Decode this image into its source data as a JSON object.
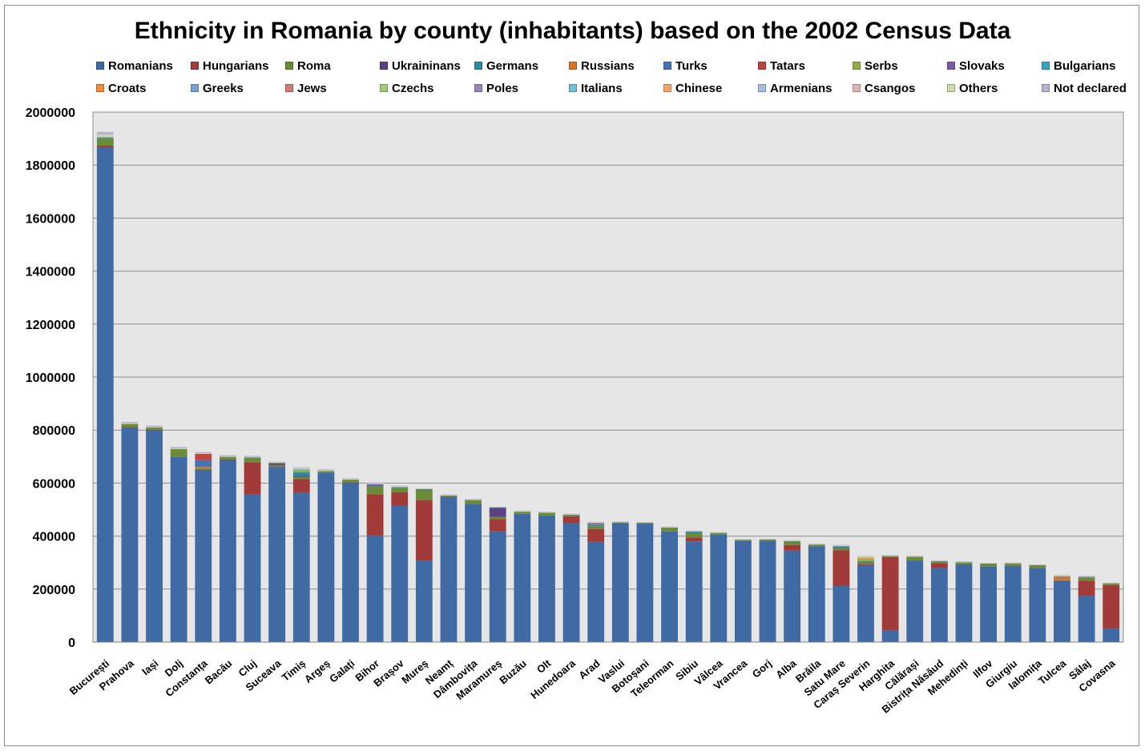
{
  "chart_data": {
    "type": "bar",
    "stacked": true,
    "title": "Ethnicity in Romania by county (inhabitants) based on the 2002 Census Data",
    "xlabel": "",
    "ylabel": "",
    "ylim": [
      0,
      2000000
    ],
    "yticks": [
      "0",
      "200000",
      "400000",
      "600000",
      "800000",
      "1000000",
      "1200000",
      "1400000",
      "1600000",
      "1800000",
      "2000000"
    ],
    "grid": true,
    "legend_position": "top",
    "categories": [
      "București",
      "Prahova",
      "Iași",
      "Dolj",
      "Constanța",
      "Bacău",
      "Cluj",
      "Suceava",
      "Timiș",
      "Argeș",
      "Galați",
      "Bihor",
      "Brașov",
      "Mureș",
      "Neamț",
      "Dâmbovița",
      "Maramureș",
      "Buzău",
      "Olt",
      "Hunedoara",
      "Arad",
      "Vaslui",
      "Botoșani",
      "Teleorman",
      "Sibiu",
      "Vâlcea",
      "Vrancea",
      "Gorj",
      "Alba",
      "Brăila",
      "Satu Mare",
      "Caraș Severin",
      "Harghita",
      "Călărași",
      "Bistrița Năsăud",
      "Mehedinți",
      "Ilfov",
      "Giurgiu",
      "Ialomița",
      "Tulcea",
      "Sălaj",
      "Covasna"
    ],
    "series": [
      {
        "name": "Romanians",
        "color": "#3f6aa4",
        "values": [
          1867000,
          810000,
          800000,
          700000,
          650000,
          688000,
          557000,
          661000,
          564000,
          640000,
          602000,
          402000,
          515000,
          308000,
          548000,
          522000,
          418000,
          484000,
          478000,
          449000,
          378000,
          449000,
          447000,
          418000,
          380000,
          406000,
          382000,
          382000,
          345000,
          362000,
          213000,
          290000,
          45000,
          308000,
          280000,
          293000,
          286000,
          287000,
          280000,
          230000,
          175000,
          51000
        ]
      },
      {
        "name": "Hungarians",
        "color": "#a33a3a",
        "values": [
          6000,
          1000,
          1000,
          0,
          500,
          1000,
          122000,
          2000,
          51000,
          0,
          1000,
          156000,
          50000,
          228000,
          1000,
          0,
          46000,
          0,
          0,
          26000,
          49000,
          0,
          0,
          0,
          15000,
          0,
          0,
          0,
          21000,
          0,
          134000,
          4000,
          276000,
          0,
          18000,
          0,
          0,
          0,
          0,
          0,
          57000,
          164000
        ]
      },
      {
        "name": "Roma",
        "color": "#6a8b38",
        "values": [
          28000,
          12000,
          9000,
          28000,
          6000,
          10000,
          17000,
          5000,
          8000,
          5000,
          10000,
          30000,
          17000,
          40000,
          4000,
          14000,
          8000,
          8000,
          10000,
          5000,
          10000,
          3000,
          3000,
          14000,
          16000,
          6000,
          4000,
          5000,
          14000,
          6000,
          8000,
          6000,
          4000,
          14000,
          6000,
          8000,
          10000,
          10000,
          10000,
          2000,
          12000,
          7000
        ]
      },
      {
        "name": "Ukraininans",
        "color": "#5c4282",
        "values": [
          0,
          0,
          0,
          0,
          0,
          0,
          0,
          6000,
          4000,
          0,
          0,
          0,
          0,
          0,
          0,
          0,
          34000,
          0,
          0,
          0,
          0,
          0,
          0,
          0,
          0,
          0,
          0,
          0,
          0,
          0,
          1000,
          2000,
          0,
          0,
          0,
          0,
          0,
          0,
          0,
          1000,
          0,
          0
        ]
      },
      {
        "name": "Germans",
        "color": "#2e8aa3",
        "values": [
          2000,
          0,
          0,
          0,
          0,
          0,
          1000,
          1000,
          14000,
          0,
          0,
          1000,
          3000,
          1000,
          0,
          0,
          2000,
          0,
          0,
          1000,
          5000,
          0,
          0,
          0,
          6000,
          0,
          0,
          0,
          1000,
          0,
          6000,
          3000,
          0,
          0,
          1000,
          0,
          0,
          0,
          0,
          0,
          0,
          0
        ]
      },
      {
        "name": "Russians",
        "color": "#d4772d",
        "values": [
          0,
          0,
          0,
          0,
          5000,
          0,
          0,
          2000,
          0,
          0,
          0,
          0,
          0,
          0,
          0,
          0,
          0,
          0,
          0,
          0,
          0,
          0,
          0,
          0,
          0,
          0,
          0,
          0,
          0,
          0,
          0,
          0,
          0,
          0,
          0,
          0,
          0,
          0,
          0,
          13000,
          0,
          0
        ]
      },
      {
        "name": "Turks",
        "color": "#4672b8",
        "values": [
          2000,
          0,
          0,
          0,
          25000,
          0,
          0,
          0,
          0,
          0,
          0,
          0,
          0,
          0,
          0,
          0,
          0,
          0,
          0,
          0,
          0,
          0,
          0,
          0,
          0,
          0,
          0,
          0,
          0,
          0,
          0,
          0,
          0,
          0,
          0,
          0,
          0,
          0,
          0,
          2000,
          0,
          0
        ]
      },
      {
        "name": "Tatars",
        "color": "#c0443e",
        "values": [
          0,
          0,
          0,
          0,
          24000,
          0,
          0,
          0,
          0,
          0,
          0,
          0,
          0,
          0,
          0,
          0,
          0,
          0,
          0,
          0,
          0,
          0,
          0,
          0,
          0,
          0,
          0,
          0,
          0,
          0,
          0,
          0,
          0,
          0,
          0,
          0,
          0,
          0,
          0,
          0,
          0,
          0
        ]
      },
      {
        "name": "Serbs",
        "color": "#8db046",
        "values": [
          0,
          0,
          0,
          0,
          0,
          0,
          0,
          0,
          8000,
          0,
          0,
          0,
          0,
          0,
          0,
          0,
          0,
          0,
          0,
          0,
          1000,
          0,
          0,
          0,
          0,
          0,
          0,
          0,
          0,
          0,
          0,
          6000,
          0,
          0,
          0,
          0,
          0,
          0,
          0,
          0,
          0,
          0
        ]
      },
      {
        "name": "Slovaks",
        "color": "#7b5ca6",
        "values": [
          0,
          0,
          0,
          0,
          0,
          0,
          0,
          0,
          0,
          0,
          0,
          7000,
          0,
          0,
          0,
          0,
          0,
          0,
          0,
          0,
          6000,
          0,
          0,
          0,
          0,
          0,
          0,
          0,
          0,
          0,
          0,
          0,
          0,
          0,
          0,
          0,
          0,
          0,
          0,
          0,
          2000,
          0
        ]
      },
      {
        "name": "Bulgarians",
        "color": "#35a6c0",
        "values": [
          0,
          0,
          0,
          0,
          0,
          0,
          0,
          0,
          2000,
          0,
          0,
          0,
          0,
          0,
          0,
          0,
          0,
          0,
          0,
          0,
          0,
          0,
          0,
          0,
          0,
          0,
          0,
          0,
          0,
          0,
          0,
          0,
          0,
          0,
          0,
          0,
          0,
          0,
          0,
          0,
          0,
          0
        ]
      },
      {
        "name": "Croats",
        "color": "#f08c36",
        "values": [
          0,
          0,
          0,
          0,
          0,
          0,
          0,
          0,
          0,
          0,
          0,
          0,
          0,
          0,
          0,
          0,
          0,
          0,
          0,
          0,
          0,
          0,
          0,
          0,
          0,
          0,
          0,
          0,
          0,
          0,
          0,
          6000,
          0,
          0,
          0,
          0,
          0,
          0,
          0,
          0,
          0,
          0
        ]
      },
      {
        "name": "Greeks",
        "color": "#7d9ed0",
        "values": [
          0,
          0,
          0,
          0,
          0,
          0,
          0,
          0,
          0,
          0,
          0,
          0,
          0,
          0,
          0,
          0,
          0,
          0,
          0,
          0,
          0,
          0,
          0,
          0,
          0,
          0,
          0,
          0,
          0,
          0,
          0,
          0,
          0,
          0,
          0,
          0,
          0,
          0,
          0,
          0,
          0,
          0
        ]
      },
      {
        "name": "Jews",
        "color": "#d07a78",
        "values": [
          0,
          0,
          0,
          0,
          0,
          0,
          0,
          0,
          0,
          0,
          0,
          0,
          0,
          0,
          0,
          0,
          0,
          0,
          0,
          0,
          0,
          0,
          0,
          0,
          0,
          0,
          0,
          0,
          0,
          0,
          0,
          0,
          0,
          0,
          0,
          0,
          0,
          0,
          0,
          0,
          0,
          0
        ]
      },
      {
        "name": "Czechs",
        "color": "#a9c97a",
        "values": [
          0,
          0,
          0,
          0,
          0,
          0,
          0,
          0,
          0,
          0,
          0,
          0,
          0,
          0,
          0,
          0,
          0,
          0,
          0,
          0,
          0,
          0,
          0,
          0,
          0,
          0,
          0,
          0,
          0,
          0,
          0,
          3000,
          0,
          0,
          0,
          0,
          0,
          0,
          0,
          0,
          0,
          0
        ]
      },
      {
        "name": "Poles",
        "color": "#9985b9",
        "values": [
          0,
          0,
          0,
          0,
          0,
          0,
          0,
          0,
          0,
          0,
          0,
          0,
          0,
          0,
          0,
          0,
          0,
          0,
          0,
          0,
          0,
          0,
          0,
          0,
          0,
          0,
          0,
          0,
          0,
          0,
          0,
          0,
          0,
          0,
          0,
          0,
          0,
          0,
          0,
          0,
          0,
          0
        ]
      },
      {
        "name": "Italians",
        "color": "#70bfd2",
        "values": [
          0,
          0,
          0,
          0,
          0,
          0,
          0,
          0,
          0,
          0,
          0,
          0,
          0,
          0,
          0,
          0,
          0,
          0,
          0,
          0,
          0,
          0,
          0,
          0,
          0,
          0,
          0,
          0,
          0,
          0,
          0,
          0,
          0,
          0,
          0,
          0,
          0,
          0,
          0,
          0,
          0,
          0
        ]
      },
      {
        "name": "Chinese",
        "color": "#f5a566",
        "values": [
          0,
          0,
          0,
          0,
          0,
          0,
          0,
          0,
          0,
          0,
          0,
          0,
          0,
          0,
          0,
          0,
          0,
          0,
          0,
          0,
          0,
          0,
          0,
          0,
          0,
          0,
          0,
          0,
          0,
          0,
          0,
          0,
          0,
          0,
          0,
          0,
          0,
          0,
          0,
          0,
          0,
          0
        ]
      },
      {
        "name": "Armenians",
        "color": "#a7bde0",
        "values": [
          0,
          0,
          0,
          0,
          0,
          0,
          0,
          0,
          0,
          0,
          0,
          0,
          0,
          0,
          0,
          0,
          0,
          0,
          0,
          0,
          0,
          0,
          0,
          0,
          0,
          0,
          0,
          0,
          0,
          0,
          0,
          0,
          0,
          0,
          0,
          0,
          0,
          0,
          0,
          0,
          0,
          0
        ]
      },
      {
        "name": "Csangos",
        "color": "#e3b3b2",
        "values": [
          0,
          0,
          0,
          0,
          0,
          0,
          0,
          0,
          0,
          0,
          0,
          0,
          0,
          0,
          0,
          0,
          0,
          0,
          0,
          0,
          0,
          0,
          0,
          0,
          0,
          0,
          0,
          0,
          0,
          0,
          0,
          0,
          0,
          0,
          0,
          0,
          0,
          0,
          0,
          0,
          0,
          0
        ]
      },
      {
        "name": "Others",
        "color": "#c8dba9",
        "values": [
          10000,
          3000,
          2000,
          3000,
          3000,
          2000,
          2000,
          2000,
          4000,
          3000,
          3000,
          2000,
          3000,
          2000,
          2000,
          2000,
          2000,
          2000,
          2000,
          2000,
          3000,
          2000,
          2000,
          2000,
          2000,
          2000,
          2000,
          2000,
          2000,
          2000,
          3000,
          3000,
          2000,
          2000,
          2000,
          2000,
          2000,
          2000,
          2000,
          4000,
          2000,
          1000
        ]
      },
      {
        "name": "Not declared",
        "color": "#bdb1d3",
        "values": [
          10000,
          5000,
          5000,
          5000,
          4000,
          4000,
          4000,
          2000,
          4000,
          4000,
          2000,
          4000,
          2000,
          1000,
          2000,
          2000,
          1000,
          2000,
          2000,
          2000,
          2000,
          1000,
          1000,
          2000,
          2000,
          1000,
          1000,
          1000,
          2000,
          1000,
          2000,
          2000,
          1000,
          2000,
          2000,
          2000,
          1000,
          1000,
          1000,
          2000,
          2000,
          1000
        ]
      }
    ]
  }
}
